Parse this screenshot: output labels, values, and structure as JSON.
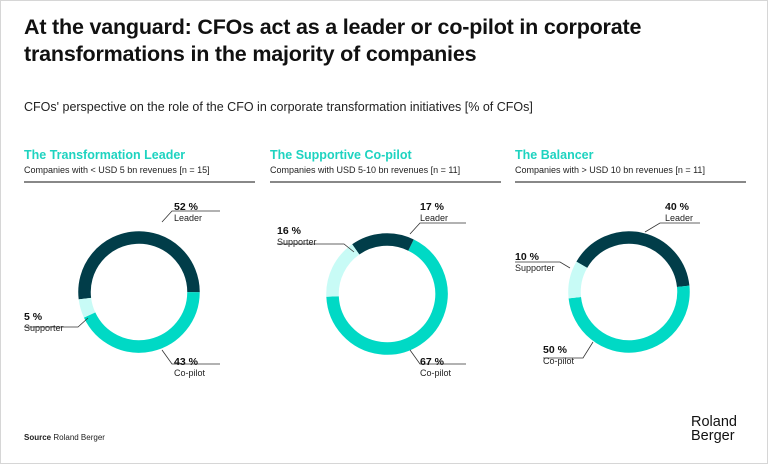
{
  "title": "At the vanguard: CFOs act as a leader or co-pilot in corporate transformations in the majority of companies",
  "subtitle": "CFOs' perspective on the role of the CFO in corporate transformation initiatives [% of CFOs]",
  "colors": {
    "leader": "#013d49",
    "copilot": "#00d9c5",
    "supporter": "#c8fbf6",
    "accent": "#1ed3c0"
  },
  "chart_data": [
    {
      "type": "pie",
      "donut": true,
      "title": "The Transformation Leader",
      "subtitle": "Companies with < USD 5 bn revenues [n = 15]",
      "slices": [
        {
          "name": "Leader",
          "value": 52,
          "label": "52 %"
        },
        {
          "name": "Co-pilot",
          "value": 43,
          "label": "43 %"
        },
        {
          "name": "Supporter",
          "value": 5,
          "label": "5 %"
        }
      ]
    },
    {
      "type": "pie",
      "donut": true,
      "title": "The Supportive Co-pilot",
      "subtitle": "Companies with USD 5-10 bn revenues [n = 11]",
      "slices": [
        {
          "name": "Leader",
          "value": 17,
          "label": "17 %"
        },
        {
          "name": "Co-pilot",
          "value": 67,
          "label": "67 %"
        },
        {
          "name": "Supporter",
          "value": 16,
          "label": "16 %"
        }
      ]
    },
    {
      "type": "pie",
      "donut": true,
      "title": "The Balancer",
      "subtitle": "Companies with > USD 10 bn revenues [n = 11]",
      "slices": [
        {
          "name": "Leader",
          "value": 40,
          "label": "40 %"
        },
        {
          "name": "Co-pilot",
          "value": 50,
          "label": "50 %"
        },
        {
          "name": "Supporter",
          "value": 10,
          "label": "10 %"
        }
      ]
    }
  ],
  "source": {
    "label": "Source",
    "text": "Roland Berger"
  },
  "logo": {
    "line1": "Roland",
    "line2": "Berger"
  }
}
